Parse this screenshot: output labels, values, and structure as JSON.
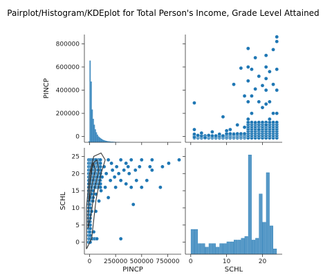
{
  "chart_data": {
    "type": "pairplot",
    "title": "Pairplot/Histogram/KDEplot for Total Person's Income, Grade Level Attained",
    "variables": [
      "PINCP",
      "SCHL"
    ],
    "color": "#1f77b4",
    "kde_color": "#333333",
    "panels": {
      "pincp_hist": {
        "type": "histogram",
        "bin_width": 10000,
        "bin_start": -10000,
        "counts": [
          8,
          700,
          520,
          280,
          200,
          150,
          110,
          85,
          65,
          50,
          42,
          35,
          28,
          22,
          18,
          15,
          12,
          10,
          8,
          7,
          6,
          5,
          4,
          4,
          3,
          3,
          2,
          2,
          2,
          2
        ]
      },
      "schl_hist": {
        "type": "histogram",
        "bins_x": [
          0.5,
          1.5,
          2.5,
          3.5,
          4.5,
          5.5,
          6.5,
          7.5,
          8.5,
          9.5,
          10.5,
          11.5,
          12.5,
          13.5,
          14.5,
          15.5,
          16.5,
          17.5,
          18.5,
          19.5,
          20.5,
          21.5,
          22.5,
          23.5
        ],
        "heights": [
          0.07,
          0.07,
          0.03,
          0.03,
          0.02,
          0.03,
          0.03,
          0.02,
          0.03,
          0.03,
          0.035,
          0.035,
          0.04,
          0.04,
          0.045,
          0.05,
          0.28,
          0.04,
          0.045,
          0.17,
          0.09,
          0.23,
          0.08,
          0.015
        ]
      },
      "scatter_schl_vs_pincp": {
        "x_label": "PINCP",
        "y_label": "SCHL",
        "note": "SCHL (y) against PINCP (x); a representative subset of points read off the figure",
        "points": [
          [
            -5000,
            1
          ],
          [
            10000,
            1
          ],
          [
            30000,
            1
          ],
          [
            50000,
            1
          ],
          [
            70000,
            1
          ],
          [
            300000,
            1
          ],
          [
            0,
            3
          ],
          [
            40000,
            3
          ],
          [
            0,
            6
          ],
          [
            20000,
            9
          ],
          [
            60000,
            9
          ],
          [
            0,
            11
          ],
          [
            30000,
            12
          ],
          [
            90000,
            12
          ],
          [
            20000,
            14
          ],
          [
            60000,
            14
          ],
          [
            110000,
            15
          ],
          [
            50000,
            16
          ],
          [
            150000,
            16
          ],
          [
            250000,
            16
          ],
          [
            400000,
            16
          ],
          [
            500000,
            16
          ],
          [
            680000,
            16
          ],
          [
            350000,
            17
          ],
          [
            100000,
            18
          ],
          [
            200000,
            18
          ],
          [
            300000,
            18
          ],
          [
            450000,
            18
          ],
          [
            550000,
            18
          ],
          [
            420000,
            11
          ],
          [
            180000,
            13
          ],
          [
            240000,
            19
          ],
          [
            120000,
            19
          ],
          [
            160000,
            20
          ],
          [
            280000,
            20
          ],
          [
            380000,
            20
          ],
          [
            80000,
            21
          ],
          [
            220000,
            21
          ],
          [
            330000,
            21
          ],
          [
            440000,
            21
          ],
          [
            600000,
            21
          ],
          [
            40000,
            22
          ],
          [
            140000,
            22
          ],
          [
            260000,
            22
          ],
          [
            370000,
            22
          ],
          [
            480000,
            22
          ],
          [
            580000,
            22
          ],
          [
            700000,
            22
          ],
          [
            760000,
            23
          ],
          [
            60000,
            24
          ],
          [
            180000,
            24
          ],
          [
            300000,
            24
          ],
          [
            400000,
            24
          ],
          [
            500000,
            24
          ],
          [
            600000,
            24
          ],
          [
            860000,
            24
          ],
          [
            210000,
            23
          ],
          [
            350000,
            23
          ]
        ]
      },
      "scatter_pincp_vs_schl": {
        "x_label": "SCHL",
        "y_label": "PINCP",
        "note": "PINCP (y) against SCHL (x); a representative subset of points read off the figure",
        "points": [
          [
            1,
            -5000
          ],
          [
            1,
            20000
          ],
          [
            1,
            60000
          ],
          [
            1,
            290000
          ],
          [
            2,
            10000
          ],
          [
            3,
            30000
          ],
          [
            4,
            -10000
          ],
          [
            5,
            10000
          ],
          [
            6,
            40000
          ],
          [
            8,
            20000
          ],
          [
            9,
            170000
          ],
          [
            10,
            50000
          ],
          [
            11,
            60000
          ],
          [
            12,
            450000
          ],
          [
            12,
            20000
          ],
          [
            13,
            100000
          ],
          [
            14,
            590000
          ],
          [
            15,
            350000
          ],
          [
            15,
            80000
          ],
          [
            16,
            760000
          ],
          [
            16,
            600000
          ],
          [
            16,
            480000
          ],
          [
            16,
            300000
          ],
          [
            16,
            150000
          ],
          [
            17,
            580000
          ],
          [
            17,
            350000
          ],
          [
            17,
            200000
          ],
          [
            18,
            680000
          ],
          [
            18,
            410000
          ],
          [
            18,
            120000
          ],
          [
            19,
            520000
          ],
          [
            19,
            300000
          ],
          [
            19,
            60000
          ],
          [
            20,
            440000
          ],
          [
            20,
            250000
          ],
          [
            21,
            700000
          ],
          [
            21,
            600000
          ],
          [
            21,
            500000
          ],
          [
            21,
            400000
          ],
          [
            21,
            280000
          ],
          [
            21,
            100000
          ],
          [
            22,
            560000
          ],
          [
            22,
            300000
          ],
          [
            22,
            150000
          ],
          [
            23,
            750000
          ],
          [
            23,
            450000
          ],
          [
            23,
            200000
          ],
          [
            24,
            860000
          ],
          [
            24,
            820000
          ],
          [
            24,
            580000
          ],
          [
            24,
            400000
          ],
          [
            24,
            200000
          ]
        ]
      }
    },
    "axes": {
      "PINCP": {
        "range": [
          -50000,
          880000
        ],
        "tick_values": [
          0,
          200000,
          400000,
          600000,
          800000
        ],
        "tick_labels": [
          "0",
          "200000",
          "400000",
          "600000",
          "800000"
        ],
        "x_tick_values": [
          0,
          250000,
          500000,
          750000
        ],
        "x_tick_labels": [
          "0",
          "250000",
          "500000",
          "750000"
        ]
      },
      "SCHL": {
        "range": [
          -3.5,
          27.5
        ],
        "y_tick_values": [
          0,
          5,
          10,
          15,
          20,
          25
        ],
        "y_tick_labels": [
          "0",
          "5",
          "10",
          "15",
          "20",
          "25"
        ],
        "x_range": [
          -1.5,
          25.5
        ],
        "x_tick_values": [
          0,
          10,
          20
        ],
        "x_tick_labels": [
          "0",
          "10",
          "20"
        ]
      }
    }
  }
}
